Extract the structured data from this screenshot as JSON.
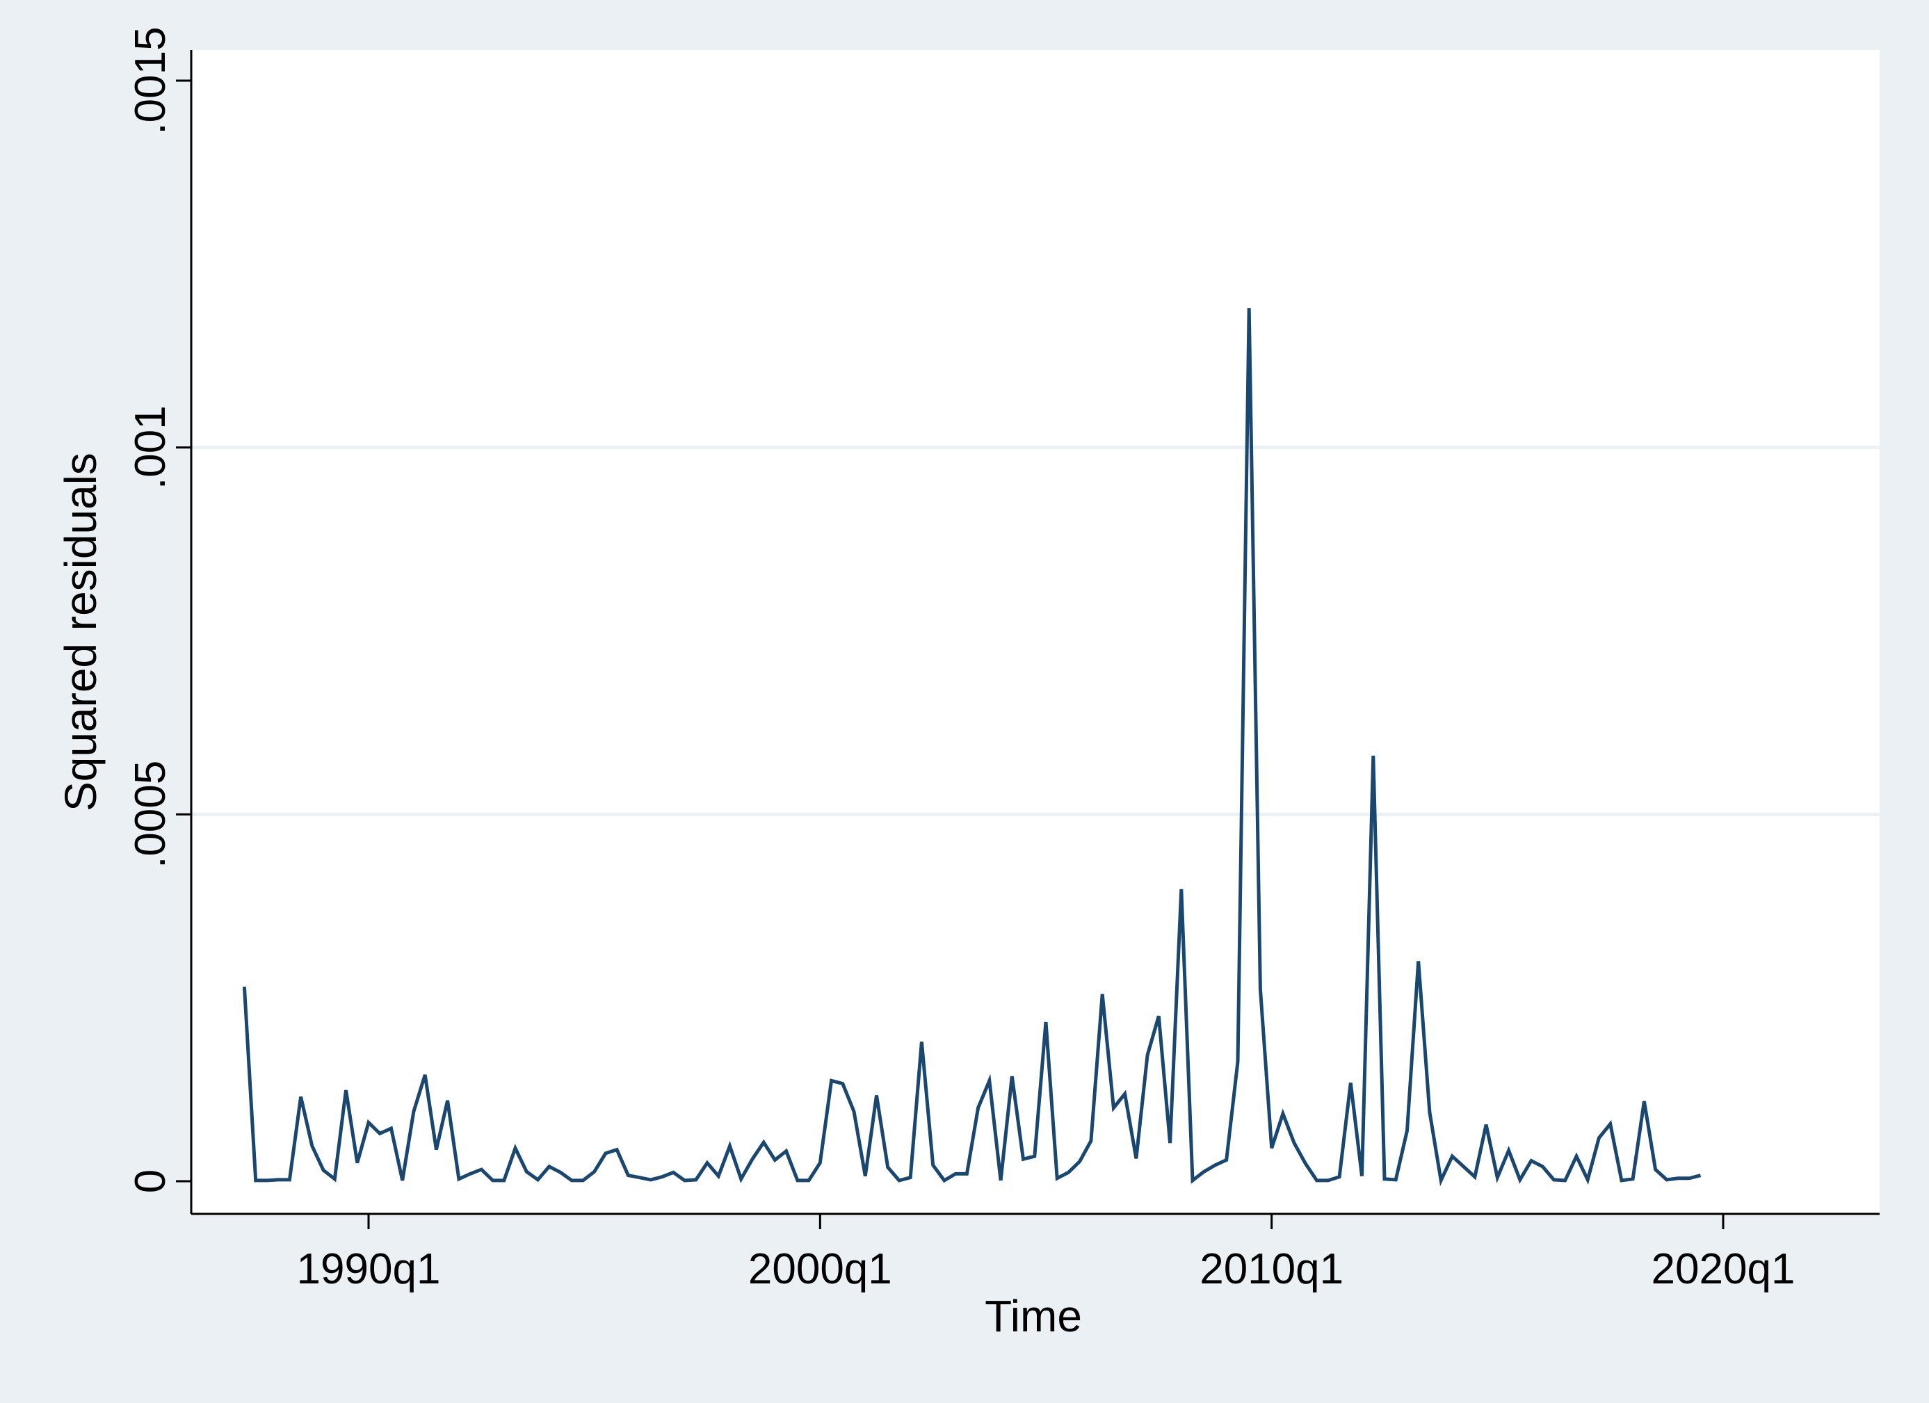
{
  "chart_data": {
    "type": "line",
    "title": "",
    "xlabel": "Time",
    "ylabel": "Squared residuals",
    "ylim": [
      0,
      0.0015
    ],
    "y_ticks": [
      0,
      0.0005,
      0.001,
      0.0015
    ],
    "y_tick_labels": [
      "0",
      ".0005",
      ".001",
      ".0015"
    ],
    "x_ticks": [
      1990,
      2000,
      2010,
      2020
    ],
    "x_tick_labels": [
      "1990q1",
      "2000q1",
      "2010q1",
      "2020q1"
    ],
    "xlim": [
      1986.4,
      2020.6
    ],
    "grid": true,
    "series": [
      {
        "name": "Squared residuals",
        "color": "#1a476f",
        "start": 1987.25,
        "step": 0.25,
        "values": [
          0.000265,
          1e-06,
          1e-06,
          2e-06,
          2e-06,
          0.000115,
          4.8e-05,
          1.5e-05,
          3e-06,
          0.000124,
          2.5e-05,
          8e-05,
          6.5e-05,
          7.2e-05,
          1e-06,
          9.5e-05,
          0.000145,
          4.3e-05,
          0.00011,
          3e-06,
          1e-05,
          1.6e-05,
          1e-06,
          1e-06,
          4.5e-05,
          1.3e-05,
          2e-06,
          2e-05,
          1.2e-05,
          1e-06,
          1e-06,
          1.3e-05,
          3.8e-05,
          4.3e-05,
          8e-06,
          5e-06,
          2e-06,
          6e-06,
          1.2e-05,
          1e-06,
          2e-06,
          2.5e-05,
          7e-06,
          4.8e-05,
          3e-06,
          3e-05,
          5.3e-05,
          2.9e-05,
          4.1e-05,
          1e-06,
          1e-06,
          2.5e-05,
          0.000137,
          0.000133,
          9.5e-05,
          7e-06,
          0.000117,
          1.9e-05,
          1e-06,
          5e-06,
          0.00019,
          2.2e-05,
          1e-06,
          1e-05,
          1e-05,
          0.0001,
          0.000137,
          1e-06,
          0.000143,
          3e-05,
          3.4e-05,
          0.000217,
          4e-06,
          1.2e-05,
          2.7e-05,
          5.5e-05,
          0.000255,
          0.0001,
          0.000119,
          3.1e-05,
          0.000172,
          0.000225,
          5.2e-05,
          0.000398,
          1e-06,
          1.3e-05,
          2.2e-05,
          2.9e-05,
          0.000163,
          0.00119,
          0.000262,
          4.5e-05,
          9.2e-05,
          5.2e-05,
          2.4e-05,
          1e-06,
          1e-06,
          6e-06,
          0.000134,
          7e-06,
          0.00058,
          3e-06,
          2e-06,
          6.9e-05,
          0.0003,
          9.4e-05,
          1e-06,
          3.4e-05,
          2e-05,
          6e-06,
          7.7e-05,
          5e-06,
          4.2e-05,
          2e-06,
          2.8e-05,
          2e-05,
          2e-06,
          1e-06,
          3.4e-05,
          2e-06,
          5.9e-05,
          7.8e-05,
          1e-06,
          3e-06,
          0.000109,
          1.6e-05,
          2e-06,
          4e-06,
          4e-06,
          8e-06
        ]
      }
    ]
  }
}
